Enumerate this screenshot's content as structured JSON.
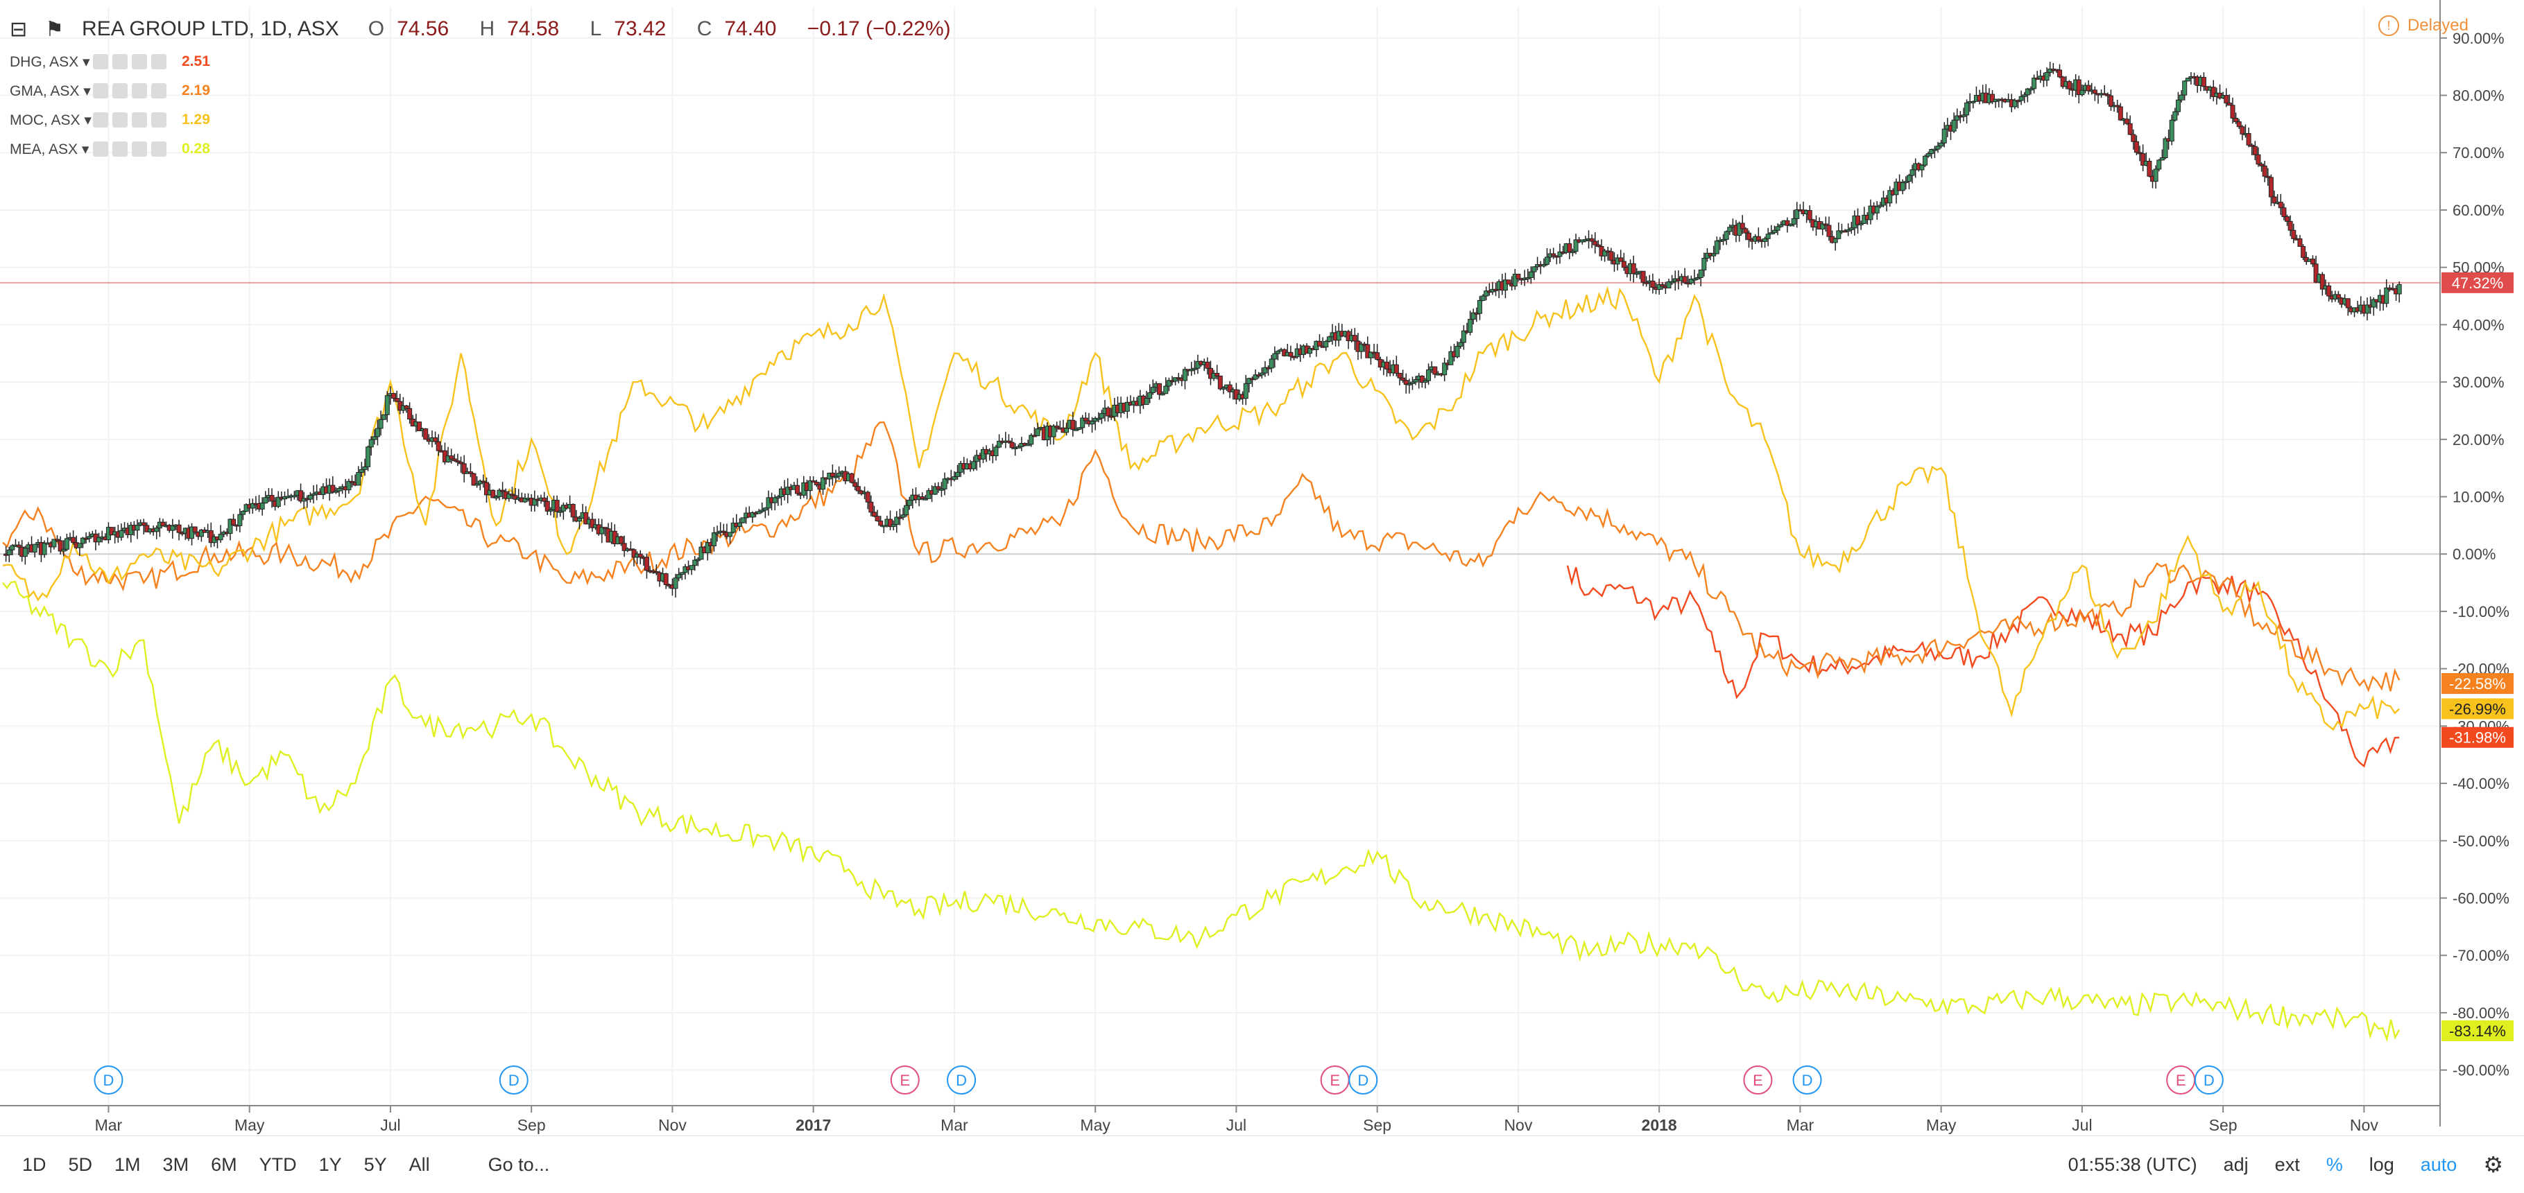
{
  "header": {
    "symbol": "REA GROUP LTD, 1D, ASX",
    "open_label": "O",
    "open": "74.56",
    "high_label": "H",
    "high": "74.58",
    "low_label": "L",
    "low": "73.42",
    "close_label": "C",
    "close": "74.40",
    "change": "−0.17 (−0.22%)"
  },
  "compare": [
    {
      "symbol": "DHG, ASX",
      "value": "2.51",
      "color": "#f24a1e"
    },
    {
      "symbol": "GMA, ASX",
      "value": "2.19",
      "color": "#f5821f"
    },
    {
      "symbol": "MOC, ASX",
      "value": "1.29",
      "color": "#f7c21b"
    },
    {
      "symbol": "MEA, ASX",
      "value": "0.28",
      "color": "#dfef1f"
    }
  ],
  "status": {
    "delayed": "Delayed",
    "icon": "info-icon"
  },
  "toolbar": {
    "ranges": [
      "1D",
      "5D",
      "1M",
      "3M",
      "6M",
      "YTD",
      "1Y",
      "5Y",
      "All"
    ],
    "goto": "Go to...",
    "time": "01:55:38 (UTC)",
    "adj": "adj",
    "ext": "ext",
    "pct": "%",
    "log": "log",
    "auto": "auto"
  },
  "chart_data": {
    "type": "line",
    "y_unit": "%",
    "ylim": [
      -95,
      93
    ],
    "y_ticks": [
      "90.00%",
      "80.00%",
      "70.00%",
      "60.00%",
      "50.00%",
      "40.00%",
      "30.00%",
      "20.00%",
      "10.00%",
      "0.00%",
      "-10.00%",
      "-20.00%",
      "-30.00%",
      "-40.00%",
      "-50.00%",
      "-60.00%",
      "-70.00%",
      "-80.00%",
      "-90.00%"
    ],
    "x_ticks": [
      {
        "label": "Mar",
        "t": 1.5
      },
      {
        "label": "May",
        "t": 3.5
      },
      {
        "label": "Jul",
        "t": 5.5
      },
      {
        "label": "Sep",
        "t": 7.5
      },
      {
        "label": "Nov",
        "t": 9.5
      },
      {
        "label": "2017",
        "t": 11.5,
        "bold": true
      },
      {
        "label": "Mar",
        "t": 13.5
      },
      {
        "label": "May",
        "t": 15.5
      },
      {
        "label": "Jul",
        "t": 17.5
      },
      {
        "label": "Sep",
        "t": 19.5
      },
      {
        "label": "Nov",
        "t": 21.5
      },
      {
        "label": "2018",
        "t": 23.5,
        "bold": true
      },
      {
        "label": "Mar",
        "t": 25.5
      },
      {
        "label": "May",
        "t": 27.5
      },
      {
        "label": "Jul",
        "t": 29.5
      },
      {
        "label": "Sep",
        "t": 31.5
      },
      {
        "label": "Nov",
        "t": 33.5
      }
    ],
    "x_range": [
      0,
      34.5
    ],
    "events": [
      {
        "t": 1.5,
        "label": "D",
        "kind": "dividend"
      },
      {
        "t": 7.25,
        "label": "D",
        "kind": "dividend"
      },
      {
        "t": 12.8,
        "label": "E",
        "kind": "earnings"
      },
      {
        "t": 13.6,
        "label": "D",
        "kind": "dividend"
      },
      {
        "t": 18.9,
        "label": "E",
        "kind": "earnings"
      },
      {
        "t": 19.3,
        "label": "D",
        "kind": "dividend"
      },
      {
        "t": 24.9,
        "label": "E",
        "kind": "earnings"
      },
      {
        "t": 25.6,
        "label": "D",
        "kind": "dividend"
      },
      {
        "t": 30.9,
        "label": "E",
        "kind": "earnings"
      },
      {
        "t": 31.3,
        "label": "D",
        "kind": "dividend"
      }
    ],
    "price_line": 47.32,
    "badges": [
      {
        "value": 47.32,
        "text": "47.32%",
        "color": "#e04b4b",
        "text_color": "#ffffff"
      },
      {
        "value": -22.58,
        "text": "-22.58%",
        "color": "#f5821f",
        "text_color": "#ffffff"
      },
      {
        "value": -26.99,
        "text": "-26.99%",
        "color": "#f7c21b",
        "text_color": "#222222"
      },
      {
        "value": -31.98,
        "text": "-31.98%",
        "color": "#f24a1e",
        "text_color": "#ffffff"
      },
      {
        "value": -83.14,
        "text": "-83.14%",
        "color": "#dfef1f",
        "text_color": "#222222"
      }
    ],
    "main_series": {
      "name": "REA GROUP LTD, 1D, ASX",
      "style": "candles",
      "up_color": "#3c8f5f",
      "down_color": "#b3262a",
      "t": [
        0,
        1,
        2,
        3,
        3.5,
        4,
        5,
        5.5,
        6,
        7,
        8,
        9,
        9.5,
        10,
        11,
        12,
        12.5,
        13,
        14,
        15,
        16,
        17,
        17.5,
        18,
        19,
        20,
        20.5,
        21,
        22,
        22.5,
        23,
        23.5,
        24,
        24.5,
        25,
        25.5,
        26,
        27,
        28,
        28.5,
        29,
        30,
        30.5,
        31,
        31.5,
        32,
        32.5,
        33,
        33.5,
        34
      ],
      "values": [
        0,
        2,
        5,
        3,
        8,
        10,
        12,
        28,
        20,
        10,
        8,
        0,
        -6,
        2,
        10,
        14,
        5,
        10,
        18,
        22,
        26,
        33,
        27,
        34,
        38,
        30,
        33,
        45,
        52,
        55,
        50,
        47,
        48,
        57,
        55,
        60,
        55,
        65,
        80,
        78,
        84,
        78,
        65,
        83,
        80,
        68,
        55,
        45,
        42,
        47
      ]
    },
    "series": [
      {
        "symbol": "DHG, ASX",
        "color": "#f24a1e",
        "t": [
          22.2,
          22.5,
          23,
          23.5,
          24,
          24.3,
          24.6,
          25,
          25.5,
          26,
          27,
          28,
          29,
          30,
          30.5,
          31,
          31.5,
          32,
          32.5,
          33,
          33.5,
          34
        ],
        "values": [
          -2,
          -7,
          -6,
          -10,
          -8,
          -17,
          -25,
          -14,
          -19,
          -20,
          -17,
          -18,
          -8,
          -14,
          -14,
          -5,
          -5,
          -7,
          -15,
          -26,
          -37,
          -32
        ]
      },
      {
        "symbol": "GMA, ASX",
        "color": "#f5821f",
        "t": [
          0,
          0.5,
          1,
          2,
          3,
          4,
          5,
          6,
          7,
          7.5,
          8,
          9,
          10,
          11,
          12,
          12.5,
          13,
          14,
          15,
          15.5,
          16,
          17,
          18,
          18.5,
          19,
          20,
          21,
          21.5,
          22,
          23,
          24,
          24.5,
          25,
          25.5,
          26,
          27,
          28,
          29,
          30,
          30.5,
          31,
          31.5,
          32,
          33,
          33.5,
          34
        ],
        "values": [
          2,
          8,
          -3,
          -5,
          0,
          0,
          -3,
          10,
          2,
          0,
          -5,
          -2,
          2,
          5,
          13,
          23,
          0,
          2,
          5,
          18,
          5,
          2,
          5,
          13,
          3,
          2,
          -2,
          8,
          10,
          5,
          -2,
          -10,
          -18,
          -20,
          -19,
          -18,
          -14,
          -12,
          -10,
          -3,
          -3,
          -5,
          -12,
          -20,
          -22,
          -22
        ]
      },
      {
        "symbol": "MOC, ASX",
        "color": "#f7c21b",
        "t": [
          0,
          0.5,
          1,
          1.5,
          2,
          3,
          4,
          5,
          5.5,
          6,
          6.5,
          7,
          7.5,
          8,
          9,
          10,
          11,
          12,
          12.5,
          13,
          13.5,
          14,
          15,
          15.5,
          16,
          17,
          18,
          18.5,
          19,
          20,
          20.5,
          21,
          22,
          23,
          23.5,
          24,
          24.5,
          25,
          25.5,
          26,
          27,
          27.5,
          28,
          28.5,
          29,
          29.5,
          30,
          30.5,
          31,
          31.5,
          32,
          32.5,
          33,
          33.5,
          34
        ],
        "values": [
          -2,
          -8,
          2,
          -5,
          0,
          -3,
          5,
          10,
          30,
          5,
          35,
          5,
          20,
          0,
          30,
          22,
          35,
          40,
          45,
          15,
          35,
          30,
          20,
          35,
          15,
          22,
          25,
          30,
          35,
          20,
          25,
          35,
          42,
          45,
          30,
          45,
          28,
          20,
          0,
          -2,
          12,
          15,
          -10,
          -28,
          -12,
          -2,
          -18,
          -12,
          3,
          -10,
          -5,
          -22,
          -30,
          -27,
          -27
        ]
      },
      {
        "symbol": "MEA, ASX",
        "color": "#dfef1f",
        "t": [
          0,
          1,
          1.5,
          2,
          2.5,
          3,
          3.5,
          4,
          4.5,
          5,
          5.5,
          6,
          7,
          7.5,
          8,
          9,
          10,
          11,
          12,
          12.5,
          13,
          14,
          15,
          16,
          17,
          17.5,
          18,
          19,
          19.5,
          20,
          21,
          22,
          22.5,
          23,
          24,
          24.5,
          25,
          26,
          27,
          28,
          29,
          30,
          31,
          32,
          33,
          34
        ],
        "values": [
          -5,
          -15,
          -20,
          -15,
          -47,
          -33,
          -40,
          -35,
          -45,
          -40,
          -22,
          -30,
          -30,
          -28,
          -35,
          -45,
          -48,
          -50,
          -55,
          -60,
          -62,
          -60,
          -63,
          -65,
          -67,
          -63,
          -60,
          -55,
          -52,
          -60,
          -63,
          -67,
          -70,
          -68,
          -68,
          -73,
          -77,
          -76,
          -78,
          -79,
          -77,
          -79,
          -78,
          -80,
          -81,
          -83
        ]
      }
    ]
  }
}
